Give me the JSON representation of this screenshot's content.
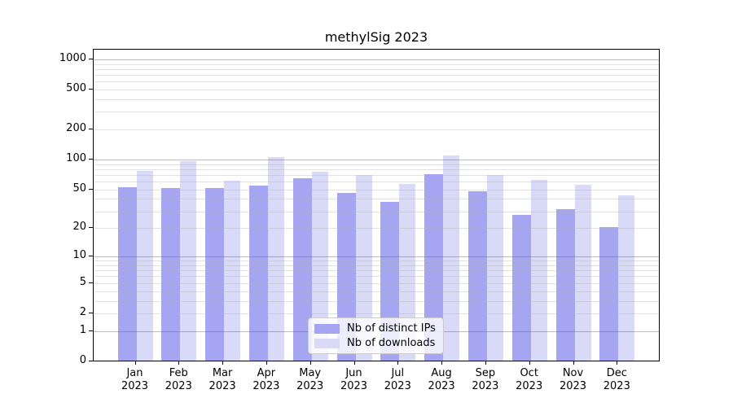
{
  "title": "methylSig 2023",
  "legend": {
    "items": [
      {
        "label": "Nb of distinct IPs",
        "color": "#a5a5f2"
      },
      {
        "label": "Nb of downloads",
        "color": "#d9d9f8"
      }
    ]
  },
  "colors": {
    "distinct_ips_bar": "#a5a5f2",
    "downloads_bar": "#d9d9f8",
    "major_gridline": "#b0b0b0",
    "minor_gridline": "#e6e6e6",
    "axis": "#000000"
  },
  "chart_data": {
    "type": "bar",
    "title": "methylSig 2023",
    "y_scale": "log10(1+x)",
    "ylim": [
      0,
      1200
    ],
    "grid": "major lines at 1,10,100,1000; log minor lines; drawn over bars",
    "legend_position": "lower center",
    "year": "2023",
    "categories": [
      "Jan",
      "Feb",
      "Mar",
      "Apr",
      "May",
      "Jun",
      "Jul",
      "Aug",
      "Sep",
      "Oct",
      "Nov",
      "Dec"
    ],
    "x_tick_labels": [
      "Jan 2023",
      "Feb 2023",
      "Mar 2023",
      "Apr 2023",
      "May 2023",
      "Jun 2023",
      "Jul 2023",
      "Aug 2023",
      "Sep 2023",
      "Oct 2023",
      "Nov 2023",
      "Dec 2023"
    ],
    "y_ticks": [
      0,
      1,
      2,
      5,
      10,
      20,
      50,
      100,
      200,
      500,
      1000
    ],
    "series": [
      {
        "name": "Nb of distinct IPs",
        "color": "#a5a5f2",
        "values": [
          52,
          51,
          51,
          54,
          64,
          45,
          37,
          70,
          47,
          27,
          31,
          20
        ]
      },
      {
        "name": "Nb of downloads",
        "color": "#d9d9f8",
        "values": [
          76,
          95,
          60,
          104,
          74,
          69,
          56,
          108,
          69,
          61,
          55,
          43
        ]
      }
    ]
  }
}
